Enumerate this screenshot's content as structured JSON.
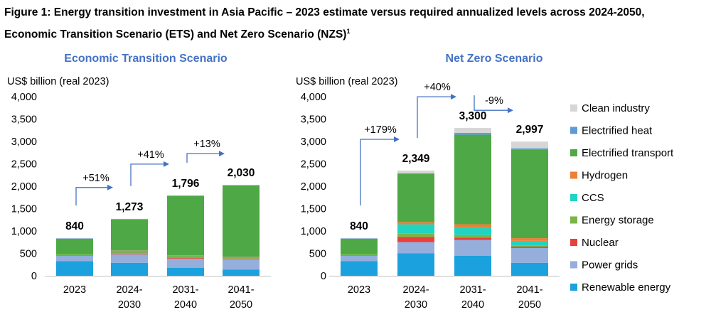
{
  "figure": {
    "title_line1": "Figure 1: Energy transition investment in Asia Pacific – 2023 estimate versus required annualized levels across 2024-2050,",
    "title_line2": "Economic Transition Scenario (ETS) and Net Zero Scenario (NZS)",
    "title_footnote": "1"
  },
  "colors": {
    "Renewable energy": "#1BA1DE",
    "Power grids": "#95AEDC",
    "Nuclear": "#E8403A",
    "Energy storage": "#7AB547",
    "CCS": "#21D4C1",
    "Hydrogen": "#EF7F35",
    "Electrified transport": "#4EA845",
    "Electrified heat": "#5E9BD6",
    "Clean industry": "#D6D6D6",
    "arrow": "#4472C4",
    "panel_title": "#4472C4"
  },
  "legend": [
    "Clean industry",
    "Electrified heat",
    "Electrified transport",
    "Hydrogen",
    "CCS",
    "Energy storage",
    "Nuclear",
    "Power grids",
    "Renewable energy"
  ],
  "chart_data": [
    {
      "type": "bar",
      "stacked": true,
      "title": "Economic Transition Scenario",
      "ylabel": "US$ billion (real 2023)",
      "ylim": [
        0,
        4000
      ],
      "yticks": [
        "0",
        "500",
        "1,000",
        "1,500",
        "2,000",
        "2,500",
        "3,000",
        "3,500",
        "4,000"
      ],
      "categories": [
        "2023",
        "2024-\n2030",
        "2031-\n2040",
        "2041-\n2050"
      ],
      "totals": [
        "840",
        "1,273",
        "1,796",
        "2,030"
      ],
      "growth": [
        "+51%",
        "+41%",
        "+13%"
      ],
      "series": [
        {
          "name": "Renewable energy",
          "values": [
            330,
            290,
            180,
            140
          ]
        },
        {
          "name": "Power grids",
          "values": [
            120,
            190,
            200,
            230
          ]
        },
        {
          "name": "Nuclear",
          "values": [
            10,
            15,
            15,
            15
          ]
        },
        {
          "name": "Energy storage",
          "values": [
            20,
            65,
            50,
            30
          ]
        },
        {
          "name": "CCS",
          "values": [
            0,
            5,
            5,
            5
          ]
        },
        {
          "name": "Hydrogen",
          "values": [
            0,
            5,
            5,
            5
          ]
        },
        {
          "name": "Electrified transport",
          "values": [
            345,
            690,
            1330,
            1590
          ]
        },
        {
          "name": "Electrified heat",
          "values": [
            10,
            10,
            8,
            10
          ]
        },
        {
          "name": "Clean industry",
          "values": [
            5,
            3,
            3,
            5
          ]
        }
      ]
    },
    {
      "type": "bar",
      "stacked": true,
      "title": "Net Zero Scenario",
      "ylabel": "US$ billion (real 2023)",
      "ylim": [
        0,
        4000
      ],
      "yticks": [
        "0",
        "500",
        "1,000",
        "1,500",
        "2,000",
        "2,500",
        "3,000",
        "3,500",
        "4,000"
      ],
      "categories": [
        "2023",
        "2024-\n2030",
        "2031-\n2040",
        "2041-\n2050"
      ],
      "totals": [
        "840",
        "2,349",
        "3,300",
        "2,997"
      ],
      "growth": [
        "+179%",
        "+40%",
        "-9%"
      ],
      "series": [
        {
          "name": "Renewable energy",
          "values": [
            330,
            500,
            450,
            290
          ]
        },
        {
          "name": "Power grids",
          "values": [
            120,
            250,
            350,
            330
          ]
        },
        {
          "name": "Nuclear",
          "values": [
            10,
            120,
            50,
            30
          ]
        },
        {
          "name": "Energy storage",
          "values": [
            20,
            70,
            60,
            30
          ]
        },
        {
          "name": "CCS",
          "values": [
            0,
            210,
            160,
            100
          ]
        },
        {
          "name": "Hydrogen",
          "values": [
            0,
            50,
            80,
            60
          ]
        },
        {
          "name": "Electrified transport",
          "values": [
            345,
            1070,
            2000,
            1970
          ]
        },
        {
          "name": "Electrified heat",
          "values": [
            10,
            20,
            40,
            37
          ]
        },
        {
          "name": "Clean industry",
          "values": [
            5,
            59,
            110,
            150
          ]
        }
      ]
    }
  ]
}
